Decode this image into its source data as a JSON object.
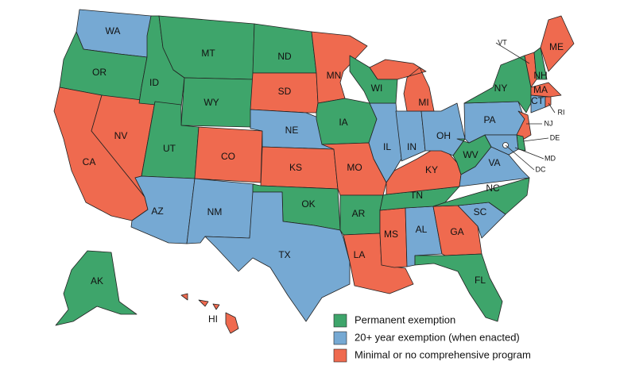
{
  "map": {
    "states": [
      {
        "label": "WA",
        "color": "#76a9d3"
      },
      {
        "label": "OR",
        "color": "#3ea56b"
      },
      {
        "label": "CA",
        "color": "#ef6a4f"
      },
      {
        "label": "NV",
        "color": "#ef6a4f"
      },
      {
        "label": "ID",
        "color": "#3ea56b"
      },
      {
        "label": "MT",
        "color": "#3ea56b"
      },
      {
        "label": "WY",
        "color": "#3ea56b"
      },
      {
        "label": "UT",
        "color": "#3ea56b"
      },
      {
        "label": "CO",
        "color": "#ef6a4f"
      },
      {
        "label": "AZ",
        "color": "#76a9d3"
      },
      {
        "label": "NM",
        "color": "#76a9d3"
      },
      {
        "label": "ND",
        "color": "#3ea56b"
      },
      {
        "label": "SD",
        "color": "#ef6a4f"
      },
      {
        "label": "NE",
        "color": "#76a9d3"
      },
      {
        "label": "KS",
        "color": "#ef6a4f"
      },
      {
        "label": "OK",
        "color": "#3ea56b"
      },
      {
        "label": "TX",
        "color": "#76a9d3"
      },
      {
        "label": "MN",
        "color": "#ef6a4f"
      },
      {
        "label": "IA",
        "color": "#3ea56b"
      },
      {
        "label": "MO",
        "color": "#ef6a4f"
      },
      {
        "label": "AR",
        "color": "#3ea56b"
      },
      {
        "label": "LA",
        "color": "#ef6a4f"
      },
      {
        "label": "MS",
        "color": "#ef6a4f"
      },
      {
        "label": "AL",
        "color": "#76a9d3"
      },
      {
        "label": "GA",
        "color": "#ef6a4f"
      },
      {
        "label": "FL",
        "color": "#3ea56b"
      },
      {
        "label": "SC",
        "color": "#76a9d3"
      },
      {
        "label": "NC",
        "color": "#3ea56b"
      },
      {
        "label": "TN",
        "color": "#3ea56b"
      },
      {
        "label": "KY",
        "color": "#ef6a4f"
      },
      {
        "label": "IL",
        "color": "#76a9d3"
      },
      {
        "label": "IN",
        "color": "#76a9d3"
      },
      {
        "label": "OH",
        "color": "#76a9d3"
      },
      {
        "label": "MI",
        "color": "#ef6a4f"
      },
      {
        "label": "WI",
        "color": "#3ea56b"
      },
      {
        "label": "WV",
        "color": "#3ea56b"
      },
      {
        "label": "VA",
        "color": "#76a9d3"
      },
      {
        "label": "PA",
        "color": "#76a9d3"
      },
      {
        "label": "NY",
        "color": "#3ea56b"
      },
      {
        "label": "NJ",
        "color": "#ef6a4f"
      },
      {
        "label": "DE",
        "color": "#3ea56b"
      },
      {
        "label": "MD",
        "color": "#76a9d3"
      },
      {
        "label": "DC",
        "color": "#76a9d3"
      },
      {
        "label": "VT",
        "color": "#ef6a4f"
      },
      {
        "label": "NH",
        "color": "#3ea56b"
      },
      {
        "label": "ME",
        "color": "#ef6a4f"
      },
      {
        "label": "MA",
        "color": "#ef6a4f"
      },
      {
        "label": "CT",
        "color": "#76a9d3"
      },
      {
        "label": "RI",
        "color": "#ef6a4f"
      },
      {
        "label": "AK",
        "color": "#3ea56b"
      },
      {
        "label": "HI",
        "color": "#ef6a4f"
      }
    ],
    "legend": [
      {
        "label": "Permanent exemption",
        "color": "#3ea56b"
      },
      {
        "label": "20+ year exemption (when enacted)",
        "color": "#76a9d3"
      },
      {
        "label": "Minimal or no comprehensive program",
        "color": "#ef6a4f"
      }
    ]
  }
}
